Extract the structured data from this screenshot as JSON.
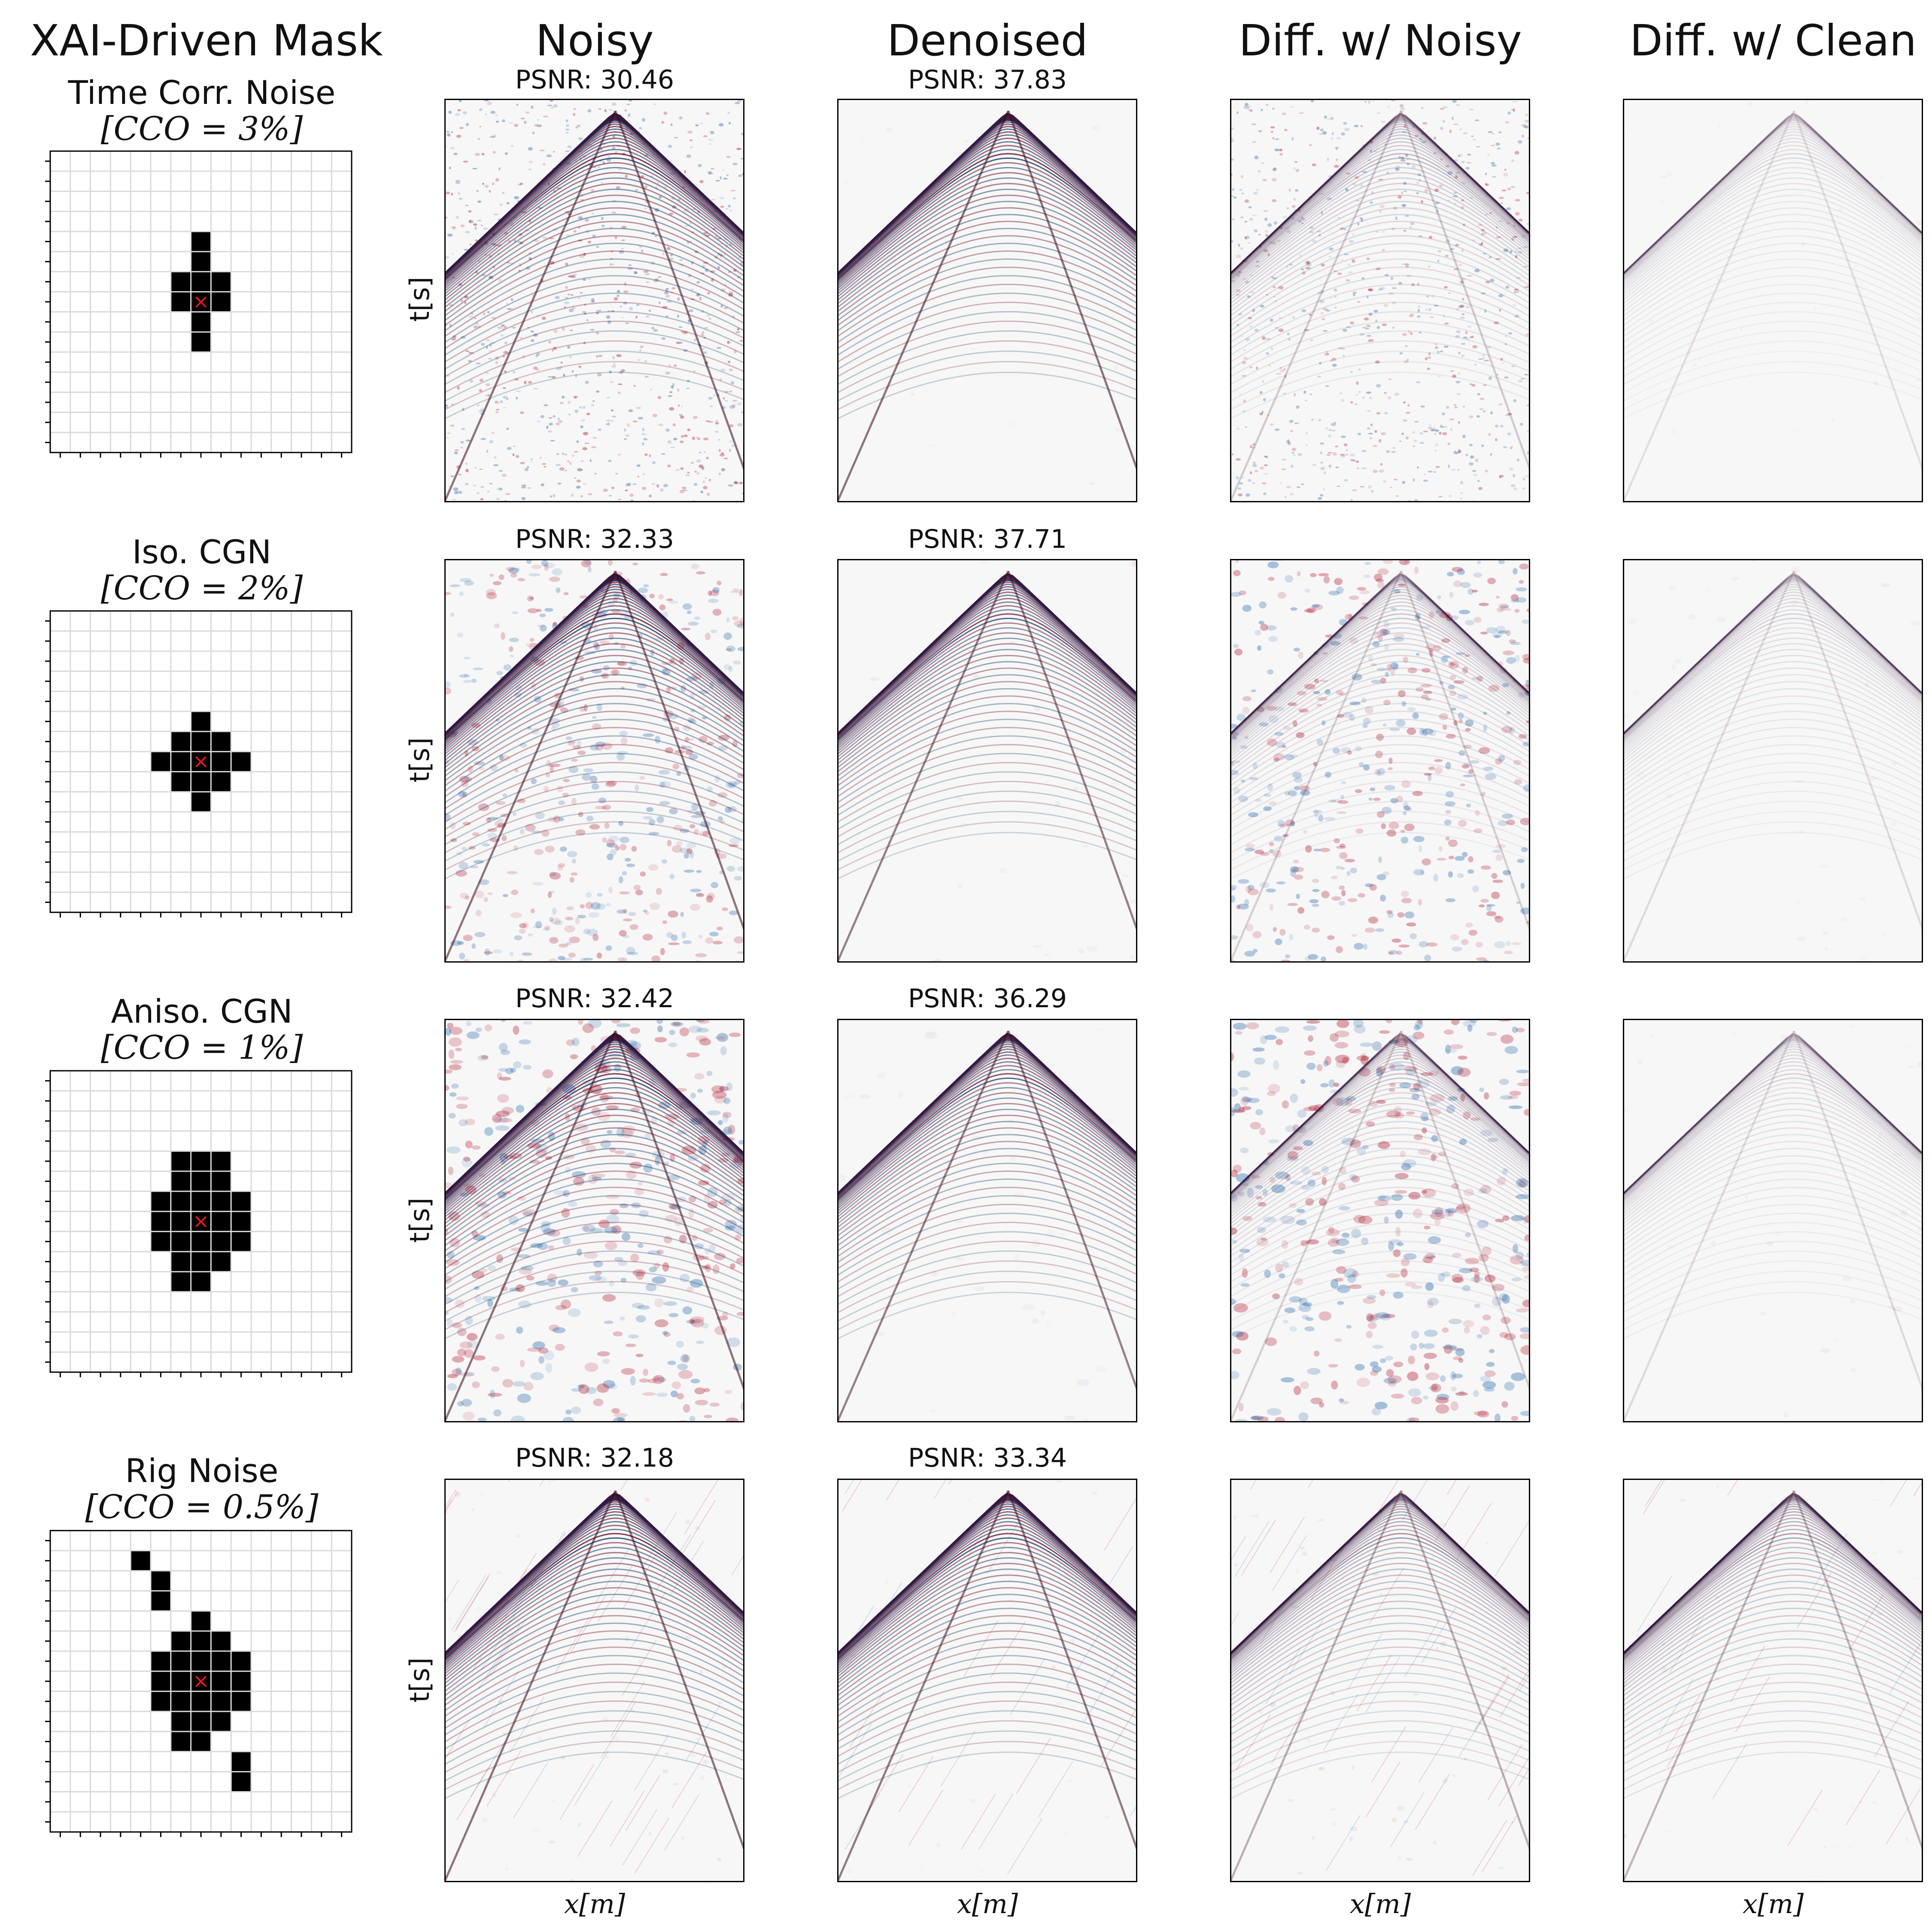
{
  "figure": {
    "column_titles": [
      "XAI-Driven Mask",
      "Noisy",
      "Denoised",
      "Diff. w/ Noisy",
      "Diff. w/ Clean"
    ],
    "axis_labels": {
      "x": "x[m]",
      "y": "t[s]"
    },
    "psnr_label": "PSNR:",
    "mask_marker": "×",
    "rows": [
      {
        "noise_type": "Time Corr. Noise",
        "cco_label": "[CCO = 3%]",
        "psnr_noisy": "30.46",
        "psnr_denoised": "37.83",
        "mask_cells": [
          [
            -3,
            0
          ],
          [
            -2,
            0
          ],
          [
            -1,
            -1
          ],
          [
            -1,
            0
          ],
          [
            -1,
            1
          ],
          [
            0,
            -1
          ],
          [
            0,
            0
          ],
          [
            0,
            1
          ],
          [
            1,
            0
          ],
          [
            2,
            0
          ]
        ]
      },
      {
        "noise_type": "Iso. CGN",
        "cco_label": "[CCO = 2%]",
        "psnr_noisy": "32.33",
        "psnr_denoised": "37.71",
        "mask_cells": [
          [
            -2,
            0
          ],
          [
            -1,
            -1
          ],
          [
            -1,
            0
          ],
          [
            -1,
            1
          ],
          [
            0,
            -2
          ],
          [
            0,
            -1
          ],
          [
            0,
            0
          ],
          [
            0,
            1
          ],
          [
            0,
            2
          ],
          [
            1,
            -1
          ],
          [
            1,
            0
          ],
          [
            1,
            1
          ],
          [
            2,
            0
          ]
        ]
      },
      {
        "noise_type": "Aniso. CGN",
        "cco_label": "[CCO = 1%]",
        "psnr_noisy": "32.42",
        "psnr_denoised": "36.29",
        "mask_cells": [
          [
            -3,
            -1
          ],
          [
            -3,
            0
          ],
          [
            -3,
            1
          ],
          [
            -2,
            -1
          ],
          [
            -2,
            0
          ],
          [
            -2,
            1
          ],
          [
            -1,
            -2
          ],
          [
            -1,
            -1
          ],
          [
            -1,
            0
          ],
          [
            -1,
            1
          ],
          [
            -1,
            2
          ],
          [
            0,
            -2
          ],
          [
            0,
            -1
          ],
          [
            0,
            0
          ],
          [
            0,
            1
          ],
          [
            0,
            2
          ],
          [
            1,
            -2
          ],
          [
            1,
            -1
          ],
          [
            1,
            0
          ],
          [
            1,
            1
          ],
          [
            1,
            2
          ],
          [
            2,
            -1
          ],
          [
            2,
            0
          ],
          [
            2,
            1
          ],
          [
            3,
            -1
          ],
          [
            3,
            0
          ]
        ]
      },
      {
        "noise_type": "Rig Noise",
        "cco_label": "[CCO = 0.5%]",
        "psnr_noisy": "32.18",
        "psnr_denoised": "33.34",
        "mask_cells": [
          [
            -6,
            -3
          ],
          [
            -5,
            -2
          ],
          [
            -4,
            -2
          ],
          [
            -3,
            0
          ],
          [
            -2,
            -1
          ],
          [
            -2,
            0
          ],
          [
            -2,
            1
          ],
          [
            -1,
            -2
          ],
          [
            -1,
            -1
          ],
          [
            -1,
            0
          ],
          [
            -1,
            1
          ],
          [
            -1,
            2
          ],
          [
            0,
            -2
          ],
          [
            0,
            -1
          ],
          [
            0,
            0
          ],
          [
            0,
            1
          ],
          [
            0,
            2
          ],
          [
            1,
            -2
          ],
          [
            1,
            -1
          ],
          [
            1,
            0
          ],
          [
            1,
            1
          ],
          [
            1,
            2
          ],
          [
            2,
            -1
          ],
          [
            2,
            0
          ],
          [
            2,
            1
          ],
          [
            3,
            -1
          ],
          [
            3,
            0
          ],
          [
            4,
            2
          ],
          [
            5,
            2
          ]
        ]
      }
    ],
    "colors": {
      "red": "#b2182b",
      "blue": "#2166ac",
      "mask": "#000000",
      "grid": "#d9d9d9",
      "marker": "#e31a1c"
    }
  }
}
